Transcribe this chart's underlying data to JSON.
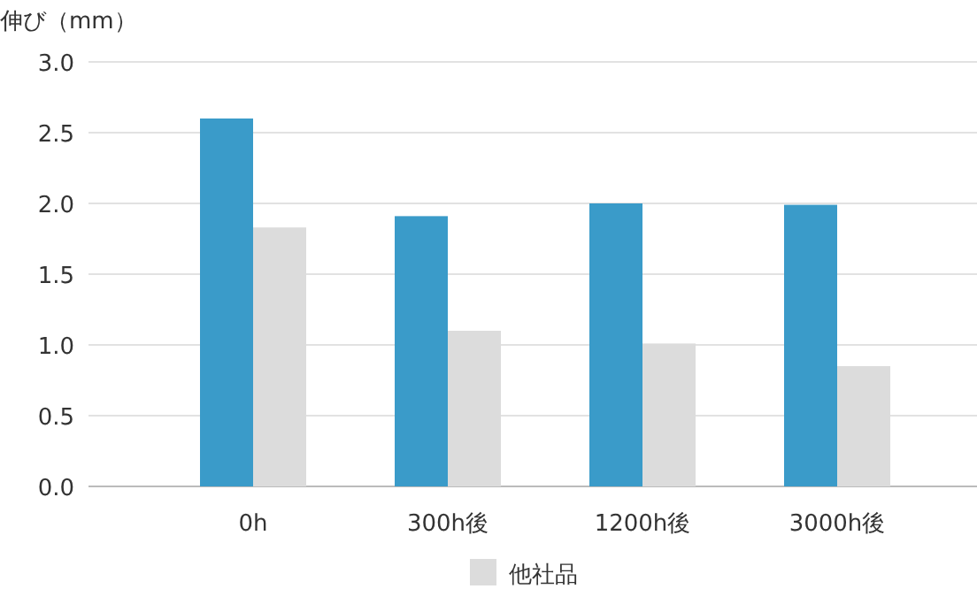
{
  "chart_data": {
    "type": "bar",
    "ylabel": "伸び（mm）",
    "categories": [
      "0h",
      "300h後",
      "1200h後",
      "3000h後"
    ],
    "series": [
      {
        "color": "#3a9bc9",
        "values": [
          2.6,
          1.91,
          2.0,
          1.99
        ]
      },
      {
        "name": "他社品",
        "color": "#dcdcdc",
        "values": [
          1.83,
          1.1,
          1.01,
          0.85
        ]
      }
    ],
    "ylim": [
      0,
      3
    ],
    "yticks": [
      {
        "value": 0,
        "label": "0.0"
      },
      {
        "value": 0.5,
        "label": "0.5"
      },
      {
        "value": 1,
        "label": "1.0"
      },
      {
        "value": 1.5,
        "label": "1.5"
      },
      {
        "value": 2,
        "label": "2.0"
      },
      {
        "value": 2.5,
        "label": "2.5"
      },
      {
        "value": 3,
        "label": "3.0"
      }
    ],
    "grid": "y",
    "legend": "bottom"
  }
}
